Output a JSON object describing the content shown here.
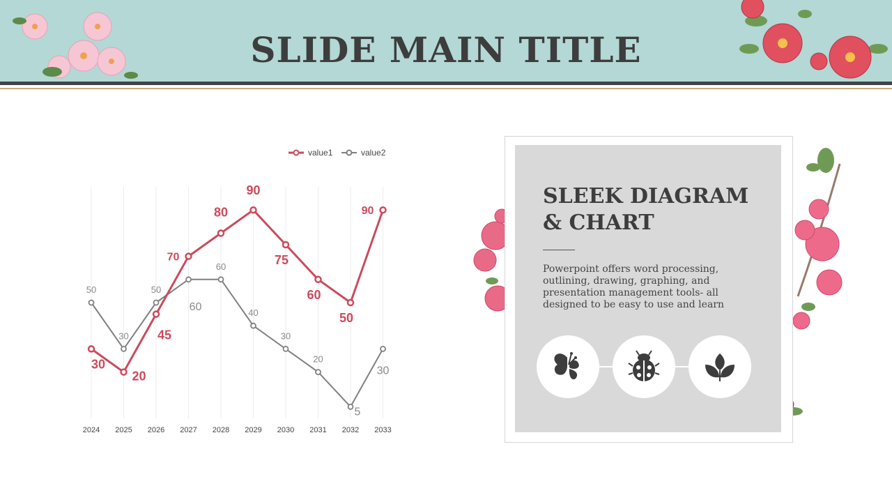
{
  "slide": {
    "title": "SLIDE MAIN TITLE"
  },
  "card": {
    "title": "SLEEK DIAGRAM & CHART",
    "body": "Powerpoint offers word processing, outlining, drawing, graphing, and presentation management tools- all designed to be easy to use and learn",
    "icons": [
      "butterfly-icon",
      "ladybug-icon",
      "leaves-icon"
    ]
  },
  "colors": {
    "header_bg": "#b3d8d5",
    "accent_red": "#cc4a5c",
    "series_gray": "#808080",
    "card_bg": "#d9d9d9"
  },
  "chart_data": {
    "type": "line",
    "x": [
      "2024",
      "2025",
      "2026",
      "2027",
      "2028",
      "2029",
      "2030",
      "2031",
      "2032",
      "2033"
    ],
    "series": [
      {
        "name": "value1",
        "values": [
          30,
          20,
          45,
          70,
          80,
          90,
          75,
          60,
          50,
          90
        ]
      },
      {
        "name": "value2",
        "values": [
          50,
          30,
          50,
          60,
          60,
          40,
          30,
          20,
          5,
          30
        ]
      }
    ],
    "ylim": [
      0,
      100
    ],
    "legend": "top-right",
    "grid": "vertical"
  }
}
